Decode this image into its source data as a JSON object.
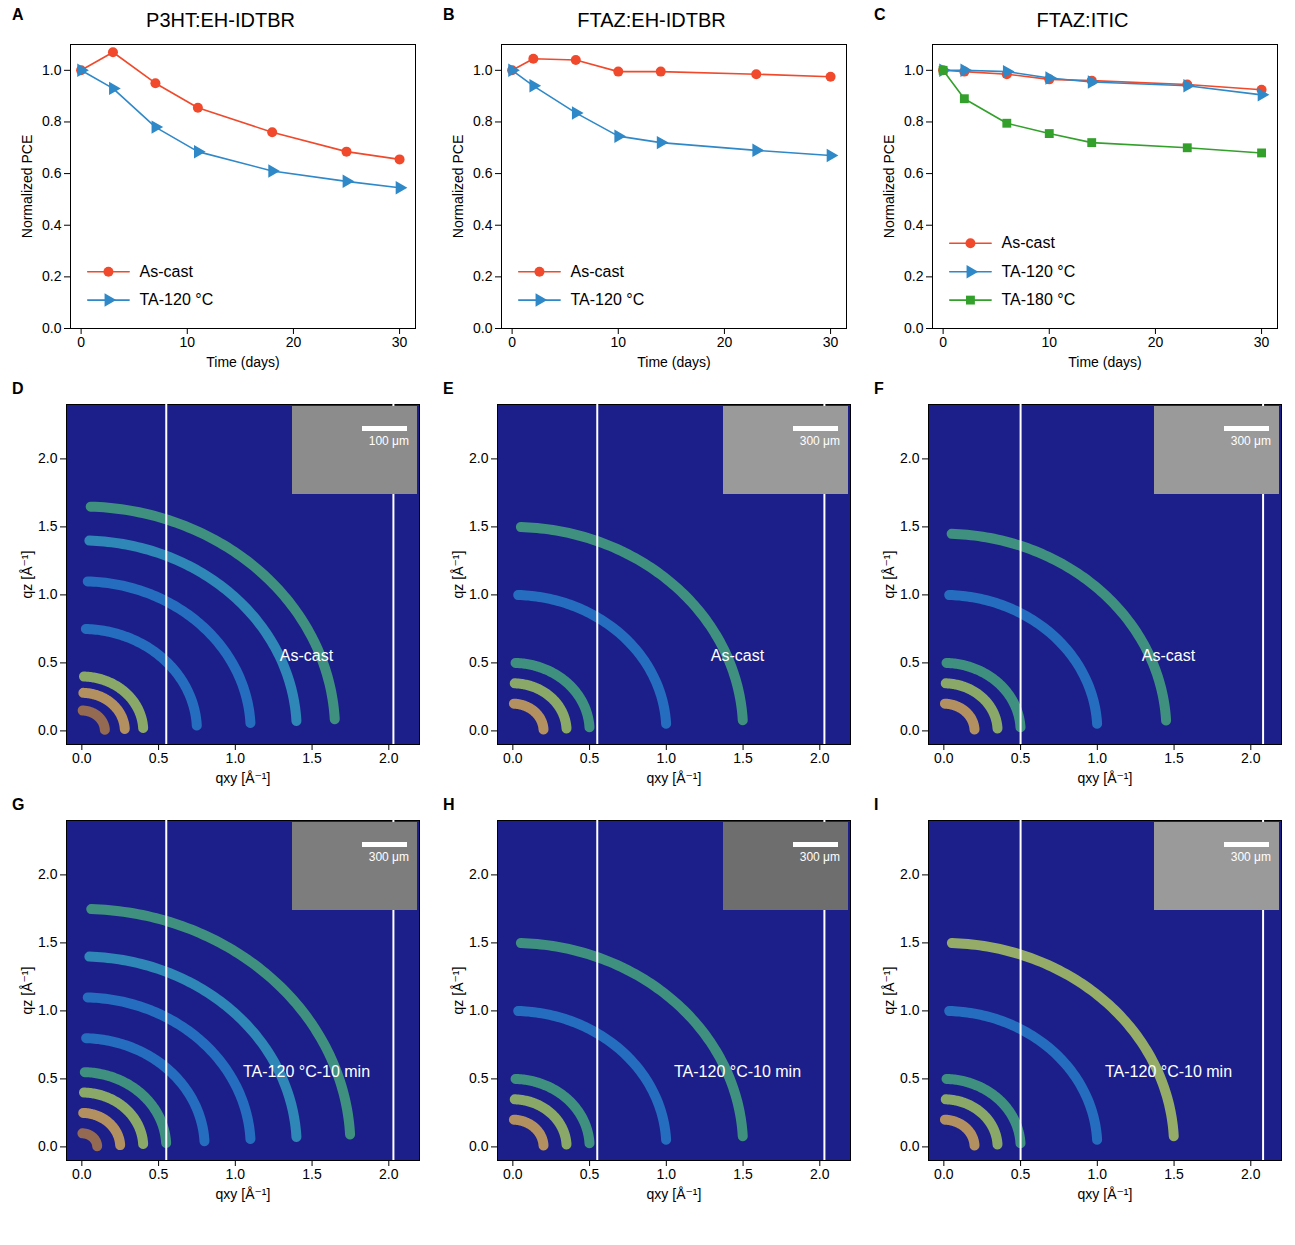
{
  "chart_data": [
    {
      "type": "line",
      "panel": "A",
      "title": "P3HT:EH-IDTBR",
      "x_label": "Time (days)",
      "y_label": "Normalized PCE",
      "x": [
        0,
        3,
        7,
        11,
        18,
        25,
        30
      ],
      "xlim": [
        -1,
        31.5
      ],
      "xticks": [
        0,
        10,
        20,
        30
      ],
      "ylim": [
        0,
        1.1
      ],
      "yticks": [
        {
          "value": 0,
          "label": "0.0"
        },
        {
          "value": 0.2,
          "label": "0.2"
        },
        {
          "value": 0.4,
          "label": "0.4"
        },
        {
          "value": 0.6,
          "label": "0.6"
        },
        {
          "value": 0.8,
          "label": "0.8"
        },
        {
          "value": 1.0,
          "label": "1.0"
        }
      ],
      "legend": "lower left",
      "series": [
        {
          "name": "As-cast",
          "color": "#f0492b",
          "marker": "circle",
          "values": [
            1.0,
            1.07,
            0.95,
            0.855,
            0.76,
            0.685,
            0.655
          ]
        },
        {
          "name": "TA-120 °C",
          "color": "#2f88c8",
          "marker": "triangle",
          "values": [
            1.0,
            0.93,
            0.78,
            0.685,
            0.61,
            0.57,
            0.545
          ]
        }
      ]
    },
    {
      "type": "line",
      "panel": "B",
      "title": "FTAZ:EH-IDTBR",
      "x_label": "Time (days)",
      "y_label": "Normalized PCE",
      "x": [
        0,
        2,
        6,
        10,
        14,
        23,
        30
      ],
      "xlim": [
        -1,
        31.5
      ],
      "xticks": [
        0,
        10,
        20,
        30
      ],
      "ylim": [
        0,
        1.1
      ],
      "yticks": [
        {
          "value": 0,
          "label": "0.0"
        },
        {
          "value": 0.2,
          "label": "0.2"
        },
        {
          "value": 0.4,
          "label": "0.4"
        },
        {
          "value": 0.6,
          "label": "0.6"
        },
        {
          "value": 0.8,
          "label": "0.8"
        },
        {
          "value": 1.0,
          "label": "1.0"
        }
      ],
      "legend": "lower left",
      "series": [
        {
          "name": "As-cast",
          "color": "#f0492b",
          "marker": "circle",
          "values": [
            1.0,
            1.045,
            1.04,
            0.995,
            0.995,
            0.985,
            0.975
          ]
        },
        {
          "name": "TA-120 °C",
          "color": "#2f88c8",
          "marker": "triangle",
          "values": [
            1.0,
            0.94,
            0.835,
            0.745,
            0.72,
            0.69,
            0.67
          ]
        }
      ]
    },
    {
      "type": "line",
      "panel": "C",
      "title": "FTAZ:ITIC",
      "x_label": "Time (days)",
      "y_label": "Normalized PCE",
      "x": [
        0,
        2,
        6,
        10,
        14,
        23,
        30
      ],
      "xlim": [
        -1,
        31.5
      ],
      "xticks": [
        0,
        10,
        20,
        30
      ],
      "ylim": [
        0,
        1.1
      ],
      "yticks": [
        {
          "value": 0,
          "label": "0.0"
        },
        {
          "value": 0.2,
          "label": "0.2"
        },
        {
          "value": 0.4,
          "label": "0.4"
        },
        {
          "value": 0.6,
          "label": "0.6"
        },
        {
          "value": 0.8,
          "label": "0.8"
        },
        {
          "value": 1.0,
          "label": "1.0"
        }
      ],
      "legend": "lower left",
      "series": [
        {
          "name": "As-cast",
          "color": "#f0492b",
          "marker": "circle",
          "values": [
            1.0,
            0.995,
            0.985,
            0.965,
            0.96,
            0.945,
            0.925
          ]
        },
        {
          "name": "TA-120 °C",
          "color": "#2f88c8",
          "marker": "triangle",
          "values": [
            1.0,
            1.0,
            0.995,
            0.97,
            0.955,
            0.94,
            0.905
          ]
        },
        {
          "name": "TA-180 °C",
          "color": "#33a02c",
          "marker": "square",
          "values": [
            1.0,
            0.89,
            0.795,
            0.755,
            0.72,
            0.7,
            0.68
          ]
        }
      ]
    },
    {
      "type": "image",
      "panel": "D",
      "annotation": "As-cast",
      "x_label": "qxy [Å⁻¹]",
      "y_label": "qz [Å⁻¹]",
      "color": "#1c1f8a",
      "xlim": [
        -0.1,
        2.2
      ],
      "xticks": [
        {
          "value": 0,
          "label": "0.0"
        },
        {
          "value": 0.5,
          "label": "0.5"
        },
        {
          "value": 1.0,
          "label": "1.0"
        },
        {
          "value": 1.5,
          "label": "1.5"
        },
        {
          "value": 2.0,
          "label": "2.0"
        }
      ],
      "ylim": [
        -0.1,
        2.4
      ],
      "yticks": [
        {
          "value": 0,
          "label": "0.0"
        },
        {
          "value": 0.5,
          "label": "0.5"
        },
        {
          "value": 1.0,
          "label": "1.0"
        },
        {
          "value": 1.5,
          "label": "1.5"
        },
        {
          "value": 2.0,
          "label": "2.0"
        }
      ],
      "detector_edges": [
        0.55,
        2.03
      ],
      "rings": [
        {
          "q": 0.15,
          "color": "#c98a3a"
        },
        {
          "q": 0.28,
          "color": "#f2c14e"
        },
        {
          "q": 0.4,
          "color": "#b9e35a"
        },
        {
          "q": 0.75,
          "color": "#2a8fd6"
        },
        {
          "q": 1.1,
          "color": "#2a8fd6"
        },
        {
          "q": 1.4,
          "color": "#36b3c9"
        },
        {
          "q": 1.65,
          "color": "#4fc07a"
        }
      ],
      "inset": {
        "scale_bar": "100 μm",
        "color": "#8c8c8c"
      }
    },
    {
      "type": "image",
      "panel": "E",
      "annotation": "As-cast",
      "x_label": "qxy [Å⁻¹]",
      "y_label": "qz [Å⁻¹]",
      "color": "#1c1f8a",
      "xlim": [
        -0.1,
        2.2
      ],
      "xticks": [
        {
          "value": 0,
          "label": "0.0"
        },
        {
          "value": 0.5,
          "label": "0.5"
        },
        {
          "value": 1.0,
          "label": "1.0"
        },
        {
          "value": 1.5,
          "label": "1.5"
        },
        {
          "value": 2.0,
          "label": "2.0"
        }
      ],
      "ylim": [
        -0.1,
        2.4
      ],
      "yticks": [
        {
          "value": 0,
          "label": "0.0"
        },
        {
          "value": 0.5,
          "label": "0.5"
        },
        {
          "value": 1.0,
          "label": "1.0"
        },
        {
          "value": 1.5,
          "label": "1.5"
        },
        {
          "value": 2.0,
          "label": "2.0"
        }
      ],
      "detector_edges": [
        0.55,
        2.03
      ],
      "rings": [
        {
          "q": 0.2,
          "color": "#f2c14e"
        },
        {
          "q": 0.35,
          "color": "#b9e35a"
        },
        {
          "q": 0.5,
          "color": "#4fc07a"
        },
        {
          "q": 1.0,
          "color": "#2a8fd6"
        },
        {
          "q": 1.5,
          "color": "#4fc07a"
        }
      ],
      "inset": {
        "scale_bar": "300 μm",
        "color": "#9a9a9a"
      }
    },
    {
      "type": "image",
      "panel": "F",
      "annotation": "As-cast",
      "x_label": "qxy [Å⁻¹]",
      "y_label": "qz [Å⁻¹]",
      "color": "#1c1f8a",
      "xlim": [
        -0.1,
        2.2
      ],
      "xticks": [
        {
          "value": 0,
          "label": "0.0"
        },
        {
          "value": 0.5,
          "label": "0.5"
        },
        {
          "value": 1.0,
          "label": "1.0"
        },
        {
          "value": 1.5,
          "label": "1.5"
        },
        {
          "value": 2.0,
          "label": "2.0"
        }
      ],
      "ylim": [
        -0.1,
        2.4
      ],
      "yticks": [
        {
          "value": 0,
          "label": "0.0"
        },
        {
          "value": 0.5,
          "label": "0.5"
        },
        {
          "value": 1.0,
          "label": "1.0"
        },
        {
          "value": 1.5,
          "label": "1.5"
        },
        {
          "value": 2.0,
          "label": "2.0"
        }
      ],
      "detector_edges": [
        0.5,
        2.08
      ],
      "rings": [
        {
          "q": 0.2,
          "color": "#f2c14e"
        },
        {
          "q": 0.35,
          "color": "#b9e35a"
        },
        {
          "q": 0.5,
          "color": "#4fc07a"
        },
        {
          "q": 1.0,
          "color": "#2a8fd6"
        },
        {
          "q": 1.45,
          "color": "#4fc07a"
        }
      ],
      "inset": {
        "scale_bar": "300 μm",
        "color": "#9a9a9a"
      }
    },
    {
      "type": "image",
      "panel": "G",
      "annotation": "TA-120 °C-10 min",
      "x_label": "qxy [Å⁻¹]",
      "y_label": "qz [Å⁻¹]",
      "color": "#1c1f8a",
      "xlim": [
        -0.1,
        2.2
      ],
      "xticks": [
        {
          "value": 0,
          "label": "0.0"
        },
        {
          "value": 0.5,
          "label": "0.5"
        },
        {
          "value": 1.0,
          "label": "1.0"
        },
        {
          "value": 1.5,
          "label": "1.5"
        },
        {
          "value": 2.0,
          "label": "2.0"
        }
      ],
      "ylim": [
        -0.1,
        2.4
      ],
      "yticks": [
        {
          "value": 0,
          "label": "0.0"
        },
        {
          "value": 0.5,
          "label": "0.5"
        },
        {
          "value": 1.0,
          "label": "1.0"
        },
        {
          "value": 1.5,
          "label": "1.5"
        },
        {
          "value": 2.0,
          "label": "2.0"
        }
      ],
      "detector_edges": [
        0.55,
        2.03
      ],
      "rings": [
        {
          "q": 0.1,
          "color": "#c98a3a"
        },
        {
          "q": 0.25,
          "color": "#f2c14e"
        },
        {
          "q": 0.4,
          "color": "#b9e35a"
        },
        {
          "q": 0.55,
          "color": "#4fc07a"
        },
        {
          "q": 0.8,
          "color": "#2a8fd6"
        },
        {
          "q": 1.1,
          "color": "#2a8fd6"
        },
        {
          "q": 1.4,
          "color": "#36b3c9"
        },
        {
          "q": 1.75,
          "color": "#4fc07a"
        }
      ],
      "inset": {
        "scale_bar": "300 μm",
        "color": "#7d7d7d"
      }
    },
    {
      "type": "image",
      "panel": "H",
      "annotation": "TA-120 °C-10 min",
      "x_label": "qxy [Å⁻¹]",
      "y_label": "qz [Å⁻¹]",
      "color": "#1c1f8a",
      "xlim": [
        -0.1,
        2.2
      ],
      "xticks": [
        {
          "value": 0,
          "label": "0.0"
        },
        {
          "value": 0.5,
          "label": "0.5"
        },
        {
          "value": 1.0,
          "label": "1.0"
        },
        {
          "value": 1.5,
          "label": "1.5"
        },
        {
          "value": 2.0,
          "label": "2.0"
        }
      ],
      "ylim": [
        -0.1,
        2.4
      ],
      "yticks": [
        {
          "value": 0,
          "label": "0.0"
        },
        {
          "value": 0.5,
          "label": "0.5"
        },
        {
          "value": 1.0,
          "label": "1.0"
        },
        {
          "value": 1.5,
          "label": "1.5"
        },
        {
          "value": 2.0,
          "label": "2.0"
        }
      ],
      "detector_edges": [
        0.55,
        2.03
      ],
      "rings": [
        {
          "q": 0.2,
          "color": "#f2c14e"
        },
        {
          "q": 0.35,
          "color": "#b9e35a"
        },
        {
          "q": 0.5,
          "color": "#4fc07a"
        },
        {
          "q": 1.0,
          "color": "#2a8fd6"
        },
        {
          "q": 1.5,
          "color": "#4fc07a"
        }
      ],
      "inset": {
        "scale_bar": "300 μm",
        "color": "#6e6e6e"
      }
    },
    {
      "type": "image",
      "panel": "I",
      "annotation": "TA-120 °C-10 min",
      "x_label": "qxy [Å⁻¹]",
      "y_label": "qz [Å⁻¹]",
      "color": "#1c1f8a",
      "xlim": [
        -0.1,
        2.2
      ],
      "xticks": [
        {
          "value": 0,
          "label": "0.0"
        },
        {
          "value": 0.5,
          "label": "0.5"
        },
        {
          "value": 1.0,
          "label": "1.0"
        },
        {
          "value": 1.5,
          "label": "1.5"
        },
        {
          "value": 2.0,
          "label": "2.0"
        }
      ],
      "ylim": [
        -0.1,
        2.4
      ],
      "yticks": [
        {
          "value": 0,
          "label": "0.0"
        },
        {
          "value": 0.5,
          "label": "0.5"
        },
        {
          "value": 1.0,
          "label": "1.0"
        },
        {
          "value": 1.5,
          "label": "1.5"
        },
        {
          "value": 2.0,
          "label": "2.0"
        }
      ],
      "detector_edges": [
        0.5,
        2.08
      ],
      "rings": [
        {
          "q": 0.2,
          "color": "#f2c14e"
        },
        {
          "q": 0.35,
          "color": "#b9e35a"
        },
        {
          "q": 0.5,
          "color": "#4fc07a"
        },
        {
          "q": 1.0,
          "color": "#2a8fd6"
        },
        {
          "q": 1.5,
          "color": "#c8e85a"
        }
      ],
      "inset": {
        "scale_bar": "300 μm",
        "color": "#9a9a9a"
      }
    }
  ]
}
